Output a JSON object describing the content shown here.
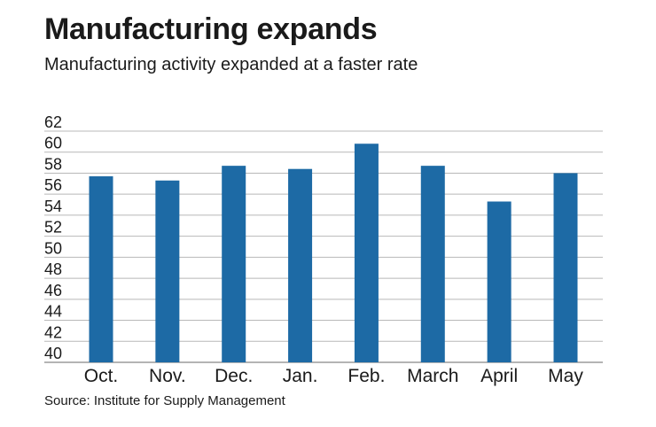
{
  "title": "Manufacturing expands",
  "subtitle": "Manufacturing activity expanded at a faster rate",
  "source": "Source: Institute for Supply Management",
  "colors": {
    "bar": "#1d6aa5",
    "grid": "#b8b8b8",
    "axis": "#888888"
  },
  "chart_data": {
    "type": "bar",
    "title": "Manufacturing expands",
    "subtitle": "Manufacturing activity expanded at a faster rate",
    "xlabel": "",
    "ylabel": "",
    "categories": [
      "Oct.",
      "Nov.",
      "Dec.",
      "Jan.",
      "Feb.",
      "March",
      "April",
      "May"
    ],
    "values": [
      57.7,
      57.3,
      58.7,
      58.4,
      60.8,
      58.7,
      55.3,
      58.0
    ],
    "ylim": [
      40,
      62
    ],
    "yticks": [
      40,
      42,
      44,
      46,
      48,
      50,
      52,
      54,
      56,
      58,
      60,
      62
    ],
    "grid": true,
    "legend": "none"
  }
}
